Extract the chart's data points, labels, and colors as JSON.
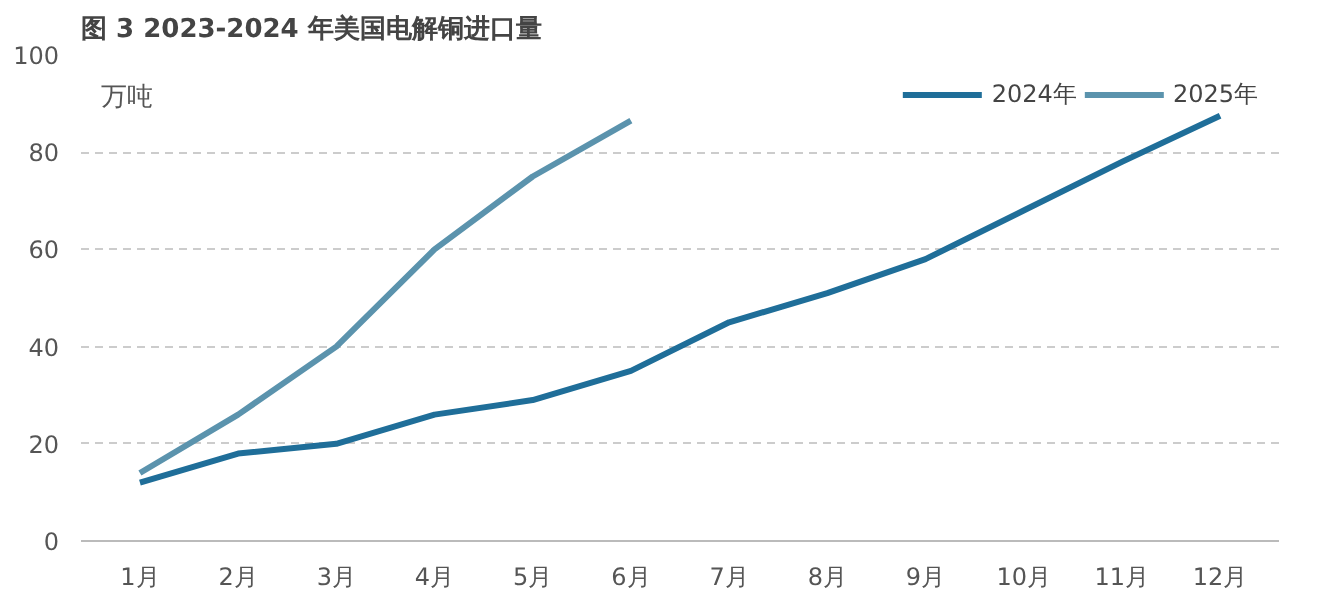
{
  "chart_data": {
    "type": "line",
    "title": "图 3 2023-2024 年美国电解铜进口量",
    "ylabel": "万吨",
    "categories": [
      "1月",
      "2月",
      "3月",
      "4月",
      "5月",
      "6月",
      "7月",
      "8月",
      "9月",
      "10月",
      "11月",
      "12月"
    ],
    "series": [
      {
        "name": "2024年",
        "color": "#1f6e99",
        "values": [
          12,
          18,
          20,
          26,
          29,
          35,
          45,
          51,
          58,
          68,
          78,
          87.5
        ]
      },
      {
        "name": "2025年",
        "color": "#5b93ad",
        "values": [
          14,
          26,
          40,
          60,
          75,
          86.5,
          null,
          null,
          null,
          null,
          null,
          null
        ]
      }
    ],
    "ylim": [
      0,
      100
    ],
    "yticks": [
      0,
      20,
      40,
      60,
      80,
      100
    ],
    "grid": "y",
    "legend": "top right",
    "line_style": "solid",
    "marker": "none"
  }
}
